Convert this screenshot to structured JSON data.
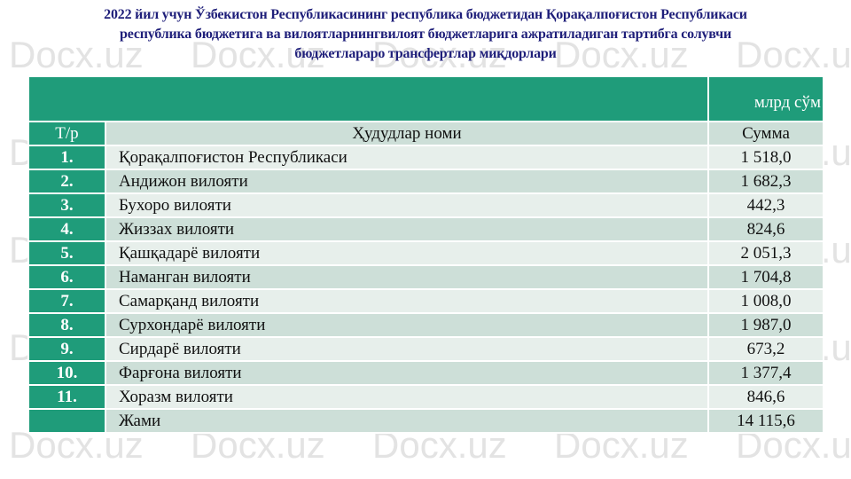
{
  "title": [
    "2022 йил учун Ўзбекистон Республикасининг республика бюджетидан Қорақалпоғистон Республикаси",
    "республика бюджетига ва вилоятларнингвилоят бюджетларига ажратиладиган тартибга солувчи",
    "бюджетлараро трансфертлар миқдорлари"
  ],
  "watermark": "Docx.uz",
  "unit": "млрд сўм",
  "headers": {
    "no": "Т/р",
    "name": "Ҳудудлар номи",
    "sum": "Сумма"
  },
  "rows": [
    {
      "no": "1.",
      "name": "Қорақалпоғистон Республикаси",
      "sum": "1 518,0"
    },
    {
      "no": "2.",
      "name": "Андижон вилояти",
      "sum": "1 682,3"
    },
    {
      "no": "3.",
      "name": "Бухоро вилояти",
      "sum": "442,3"
    },
    {
      "no": "4.",
      "name": "Жиззах вилояти",
      "sum": "824,6"
    },
    {
      "no": "5.",
      "name": "Қашқадарё вилояти",
      "sum": "2 051,3"
    },
    {
      "no": "6.",
      "name": "Наманган вилояти",
      "sum": "1 704,8"
    },
    {
      "no": "7.",
      "name": "Самарқанд вилояти",
      "sum": "1 008,0"
    },
    {
      "no": "8.",
      "name": "Сурхондарё вилояти",
      "sum": "1 987,0"
    },
    {
      "no": "9.",
      "name": "Сирдарё вилояти",
      "sum": "673,2"
    },
    {
      "no": "10.",
      "name": "Фарғона вилояти",
      "sum": "1 377,4"
    },
    {
      "no": "11.",
      "name": "Хоразм вилояти",
      "sum": "846,6"
    },
    {
      "no": "",
      "name": "Жами",
      "sum": "14 115,6"
    }
  ]
}
